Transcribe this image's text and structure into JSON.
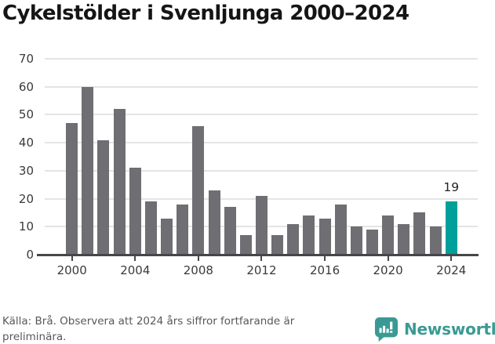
{
  "title": "Cykelstölder i Svenljunga 2000–2024",
  "chart_data": {
    "type": "bar",
    "title": "Cykelstölder i Svenljunga 2000–2024",
    "xlabel": "",
    "ylabel": "",
    "ylim": [
      0,
      70
    ],
    "grid": true,
    "categories": [
      2000,
      2001,
      2002,
      2003,
      2004,
      2005,
      2006,
      2007,
      2008,
      2009,
      2010,
      2011,
      2012,
      2013,
      2014,
      2015,
      2016,
      2017,
      2018,
      2019,
      2020,
      2021,
      2022,
      2023,
      2024
    ],
    "values": [
      47,
      60,
      41,
      52,
      31,
      19,
      13,
      18,
      46,
      23,
      17,
      7,
      21,
      7,
      11,
      14,
      13,
      18,
      10,
      9,
      14,
      11,
      15,
      10,
      19
    ],
    "yticks": [
      0,
      10,
      20,
      30,
      40,
      50,
      60,
      70
    ],
    "xticks": [
      2000,
      2004,
      2008,
      2012,
      2016,
      2020,
      2024
    ],
    "highlight_category": 2024,
    "highlight_value_label": "19",
    "bar_color": "#6f6e73",
    "highlight_color": "#00a09a",
    "grid_color": "#e4e4e4",
    "axis_color": "#47464a"
  },
  "footer": {
    "source_text": "Källa: Brå. Observera att 2024 års siffror fortfarande är\npreliminära."
  },
  "logo": {
    "name": "Newsworthy",
    "color": "#3a9a93",
    "icon": "newsworthy-speech-bubble-chart-icon"
  }
}
